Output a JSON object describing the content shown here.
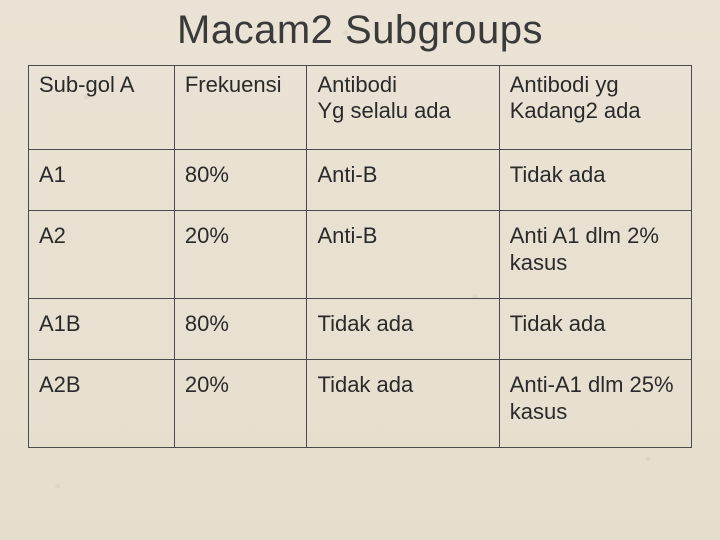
{
  "title": "Macam2 Subgroups",
  "table": {
    "type": "table",
    "border_color": "#4b4b4b",
    "background_color": "#e9e2d3",
    "text_color": "#2a2a2a",
    "header_fontsize": 22,
    "cell_fontsize": 22,
    "column_widths_pct": [
      22,
      20,
      29,
      29
    ],
    "headers": {
      "c1": "Sub-gol A",
      "c2": "Frekuensi",
      "c3_line1": "Antibodi",
      "c3_line2": "Yg selalu ada",
      "c4_line1": "Antibodi yg",
      "c4_line2": "Kadang2 ada"
    },
    "rows": [
      {
        "subgol": "A1",
        "frek": "80%",
        "selalu": "Anti-B",
        "kadang": "Tidak ada"
      },
      {
        "subgol": "A2",
        "frek": "20%",
        "selalu": "Anti-B",
        "kadang": "Anti A1 dlm 2% kasus"
      },
      {
        "subgol": "A1B",
        "frek": "80%",
        "selalu": "Tidak ada",
        "kadang": "Tidak ada"
      },
      {
        "subgol": "A2B",
        "frek": "20%",
        "selalu": "Tidak ada",
        "kadang": "Anti-A1 dlm 25% kasus"
      }
    ]
  }
}
